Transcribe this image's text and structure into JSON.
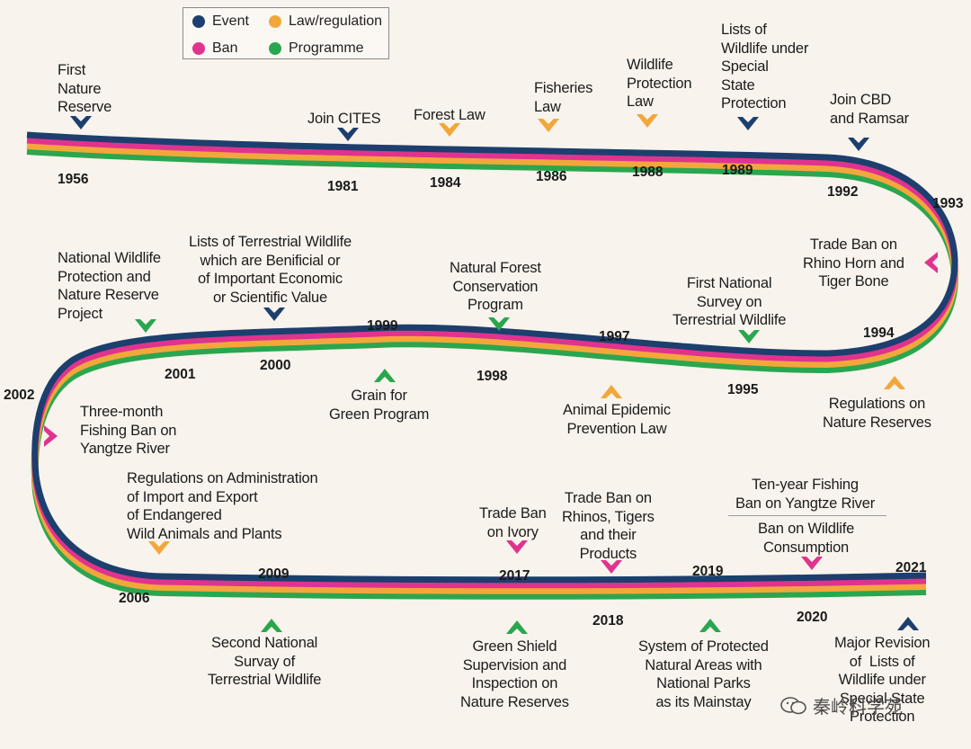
{
  "legend": {
    "event": {
      "label": "Event",
      "color": "#1c3f6e"
    },
    "law": {
      "label": "Law/regulation",
      "color": "#f2a73b"
    },
    "ban": {
      "label": "Ban",
      "color": "#e0338f"
    },
    "programme": {
      "label": "Programme",
      "color": "#2aa64f"
    }
  },
  "milestones": [
    {
      "year": "1956",
      "label": "First\nNature\nReserve",
      "kind": "event"
    },
    {
      "year": "1981",
      "label": "Join CITES",
      "kind": "event"
    },
    {
      "year": "1984",
      "label": "Forest Law",
      "kind": "law"
    },
    {
      "year": "1986",
      "label": "Fisheries\nLaw",
      "kind": "law"
    },
    {
      "year": "1988",
      "label": "Wildlife\nProtection\nLaw",
      "kind": "law"
    },
    {
      "year": "1989",
      "label": "Lists of\nWildlife under\nSpecial\nState\nProtection",
      "kind": "event"
    },
    {
      "year": "1992",
      "label": "Join CBD\nand Ramsar",
      "kind": "event"
    },
    {
      "year": "1993",
      "label": "Trade Ban on\nRhino Horn and\nTiger Bone",
      "kind": "ban"
    },
    {
      "year": "1994",
      "label": "Regulations on\nNature Reserves",
      "kind": "law"
    },
    {
      "year": "1995",
      "label": "First National\nSurvey on\nTerrestrial Wildlife",
      "kind": "programme"
    },
    {
      "year": "1997",
      "label": "Animal Epidemic\nPrevention Law",
      "kind": "law"
    },
    {
      "year": "1998",
      "label": "Natural Forest\nConservation\nProgram",
      "kind": "programme"
    },
    {
      "year": "1999",
      "label": "Grain for\nGreen Program",
      "kind": "programme"
    },
    {
      "year": "2000",
      "label": "Lists of Terrestrial Wildlife\nwhich are Benificial or\nof Important Economic\nor Scientific Value",
      "kind": "event"
    },
    {
      "year": "2001",
      "label": "National Wildlife\nProtection and\nNature Reserve\nProject",
      "kind": "programme"
    },
    {
      "year": "2002",
      "label": "Three-month\nFishing Ban on\nYangtze River",
      "kind": "ban"
    },
    {
      "year": "2006",
      "label": "Regulations on Administration\nof Import and Export\nof Endangered\nWild Animals and Plants",
      "kind": "law"
    },
    {
      "year": "2009",
      "label": "Second National\nSurvay of\nTerrestrial Wildlife",
      "kind": "programme"
    },
    {
      "year": "2017",
      "label": "Trade Ban\non Ivory",
      "kind": "ban"
    },
    {
      "year": "2017",
      "label": "Green Shield\nSupervision and\nInspection on\nNature Reserves",
      "kind": "programme"
    },
    {
      "year": "2018",
      "label": "Trade Ban on\nRhinos, Tigers\nand their\nProducts",
      "kind": "ban"
    },
    {
      "year": "2019",
      "label": "System of Protected\nNatural Areas with\nNational Parks\nas its Mainstay",
      "kind": "programme"
    },
    {
      "year": "2020",
      "label": "Ten-year Fishing\nBan on Yangtze River",
      "kind": "ban"
    },
    {
      "year": "2020",
      "label": "Ban on Wildlife\nConsumption",
      "kind": "ban"
    },
    {
      "year": "2021",
      "label": "Major Revision\nof  Lists of\nWildlife under\nSpecial State\nProtection",
      "kind": "event"
    }
  ],
  "watermark": "秦岭科学苑"
}
